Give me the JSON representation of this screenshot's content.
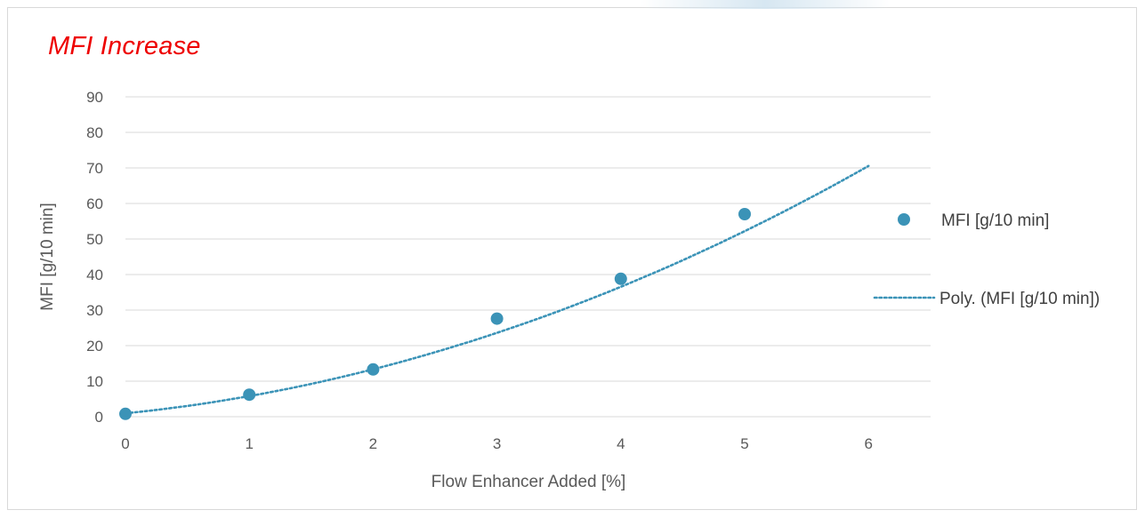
{
  "colors": {
    "title": "#ee0000",
    "series": "#3b93b7",
    "grid": "#d9d9d9",
    "text": "#595959"
  },
  "chart_data": {
    "type": "scatter",
    "title": "MFI Increase",
    "xlabel": "Flow Enhancer Added [%]",
    "ylabel": "MFI [g/10 min]",
    "xlim": [
      0,
      6.5
    ],
    "ylim": [
      0,
      90
    ],
    "xticks": [
      0,
      1,
      2,
      3,
      4,
      5,
      6
    ],
    "yticks": [
      0,
      10,
      20,
      30,
      40,
      50,
      60,
      70,
      80,
      90
    ],
    "grid": "horizontal",
    "legend_position": "right",
    "series": [
      {
        "name": "MFI [g/10 min]",
        "kind": "markers",
        "x": [
          0,
          1,
          2,
          3,
          4,
          5
        ],
        "y": [
          0.8,
          6.2,
          13.3,
          27.6,
          38.8,
          57.0
        ]
      },
      {
        "name": "Poly. (MFI [g/10 min])",
        "kind": "polynomial-trendline",
        "order": 2,
        "coefficients": [
          0.95,
          3.5,
          1.35
        ],
        "x_range": [
          0,
          6
        ]
      }
    ]
  }
}
